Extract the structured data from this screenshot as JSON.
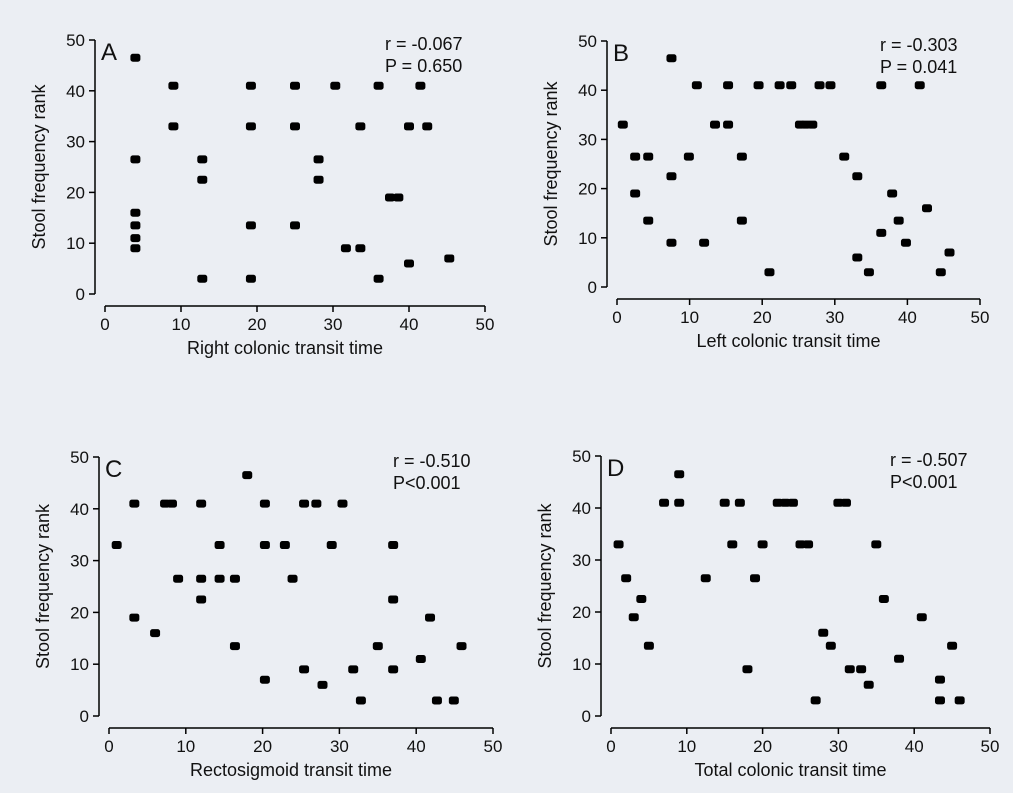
{
  "figure": {
    "background": "#ebeef3",
    "marker_color": "#000000"
  },
  "chart_data": [
    {
      "type": "scatter",
      "panel_label": "A",
      "xlabel": "Right colonic transit time",
      "ylabel": "Stool frequency rank",
      "xlim": [
        0,
        50
      ],
      "ylim": [
        0,
        50
      ],
      "xticks": [
        0,
        10,
        20,
        30,
        40,
        50
      ],
      "yticks": [
        0,
        10,
        20,
        30,
        40,
        50
      ],
      "stat_r": "r = -0.067",
      "stat_p": "P = 0.650",
      "points": [
        [
          4,
          46.5
        ],
        [
          4,
          26.5
        ],
        [
          4,
          16
        ],
        [
          4,
          13.5
        ],
        [
          4,
          11
        ],
        [
          4,
          9
        ],
        [
          9,
          41
        ],
        [
          9,
          33
        ],
        [
          12.8,
          26.5
        ],
        [
          12.8,
          22.5
        ],
        [
          12.8,
          3
        ],
        [
          19.2,
          41
        ],
        [
          19.2,
          33
        ],
        [
          19.2,
          13.5
        ],
        [
          19.2,
          3
        ],
        [
          25,
          41
        ],
        [
          25,
          33
        ],
        [
          25,
          13.5
        ],
        [
          30.3,
          41
        ],
        [
          28.1,
          26.5
        ],
        [
          28.1,
          22.5
        ],
        [
          31.7,
          9
        ],
        [
          33.6,
          33
        ],
        [
          33.6,
          9
        ],
        [
          36,
          41
        ],
        [
          36,
          3
        ],
        [
          37.5,
          19
        ],
        [
          38.6,
          19
        ],
        [
          40,
          33
        ],
        [
          40,
          6
        ],
        [
          41.5,
          41
        ],
        [
          42.4,
          33
        ],
        [
          45.3,
          7
        ]
      ]
    },
    {
      "type": "scatter",
      "panel_label": "B",
      "xlabel": "Left colonic transit time",
      "ylabel": "Stool frequency rank",
      "xlim": [
        0,
        50
      ],
      "ylim": [
        0,
        50
      ],
      "xticks": [
        0,
        10,
        20,
        30,
        40,
        50
      ],
      "yticks": [
        0,
        10,
        20,
        30,
        40,
        50
      ],
      "stat_r": "r = -0.303",
      "stat_p": "P = 0.041",
      "points": [
        [
          0.8,
          33
        ],
        [
          2.5,
          26.5
        ],
        [
          2.5,
          19
        ],
        [
          4.3,
          26.5
        ],
        [
          4.3,
          13.5
        ],
        [
          7.5,
          46.5
        ],
        [
          7.5,
          22.5
        ],
        [
          7.5,
          9
        ],
        [
          9.9,
          26.5
        ],
        [
          11,
          41
        ],
        [
          12,
          9
        ],
        [
          13.5,
          33
        ],
        [
          15.3,
          41
        ],
        [
          15.3,
          33
        ],
        [
          17.2,
          26.5
        ],
        [
          17.2,
          13.5
        ],
        [
          19.5,
          41
        ],
        [
          21,
          3
        ],
        [
          22.4,
          41
        ],
        [
          24,
          41
        ],
        [
          25.2,
          33
        ],
        [
          26,
          33
        ],
        [
          26.9,
          33
        ],
        [
          27.9,
          41
        ],
        [
          29.4,
          41
        ],
        [
          31.3,
          26.5
        ],
        [
          33.1,
          22.5
        ],
        [
          33.1,
          6
        ],
        [
          34.7,
          3
        ],
        [
          36.4,
          41
        ],
        [
          36.4,
          11
        ],
        [
          37.9,
          19
        ],
        [
          38.8,
          13.5
        ],
        [
          39.8,
          9
        ],
        [
          41.7,
          41
        ],
        [
          42.7,
          16
        ],
        [
          44.6,
          3
        ],
        [
          45.8,
          7
        ]
      ]
    },
    {
      "type": "scatter",
      "panel_label": "C",
      "xlabel": "Rectosigmoid transit time",
      "ylabel": "Stool frequency rank",
      "xlim": [
        0,
        50
      ],
      "ylim": [
        0,
        50
      ],
      "xticks": [
        0,
        10,
        20,
        30,
        40,
        50
      ],
      "yticks": [
        0,
        10,
        20,
        30,
        40,
        50
      ],
      "stat_r": "r = -0.510",
      "stat_p": "P<0.001",
      "points": [
        [
          1,
          33
        ],
        [
          3.3,
          41
        ],
        [
          3.3,
          19
        ],
        [
          6,
          16
        ],
        [
          7.3,
          41
        ],
        [
          8.2,
          41
        ],
        [
          9,
          26.5
        ],
        [
          12,
          41
        ],
        [
          12,
          26.5
        ],
        [
          12,
          22.5
        ],
        [
          14.4,
          33
        ],
        [
          14.4,
          26.5
        ],
        [
          16.4,
          26.5
        ],
        [
          16.4,
          13.5
        ],
        [
          18,
          46.5
        ],
        [
          20.3,
          41
        ],
        [
          20.3,
          33
        ],
        [
          20.3,
          7
        ],
        [
          22.9,
          33
        ],
        [
          23.9,
          26.5
        ],
        [
          25.4,
          41
        ],
        [
          25.4,
          9
        ],
        [
          27,
          41
        ],
        [
          27.8,
          6
        ],
        [
          29,
          33
        ],
        [
          30.4,
          41
        ],
        [
          31.8,
          9
        ],
        [
          32.8,
          3
        ],
        [
          35,
          13.5
        ],
        [
          37,
          33
        ],
        [
          37,
          22.5
        ],
        [
          37,
          9
        ],
        [
          40.6,
          11
        ],
        [
          41.8,
          19
        ],
        [
          42.7,
          3
        ],
        [
          44.9,
          3
        ],
        [
          45.9,
          13.5
        ]
      ]
    },
    {
      "type": "scatter",
      "panel_label": "D",
      "xlabel": "Total colonic transit time",
      "ylabel": "Stool frequency rank",
      "xlim": [
        0,
        50
      ],
      "ylim": [
        0,
        50
      ],
      "xticks": [
        0,
        10,
        20,
        30,
        40,
        50
      ],
      "yticks": [
        0,
        10,
        20,
        30,
        40,
        50
      ],
      "stat_r": "r = -0.507",
      "stat_p": "P<0.001",
      "points": [
        [
          1,
          33
        ],
        [
          2,
          26.5
        ],
        [
          3,
          19
        ],
        [
          4,
          22.5
        ],
        [
          5,
          13.5
        ],
        [
          7,
          41
        ],
        [
          9,
          46.5
        ],
        [
          9,
          41
        ],
        [
          12.5,
          26.5
        ],
        [
          15,
          41
        ],
        [
          16,
          33
        ],
        [
          17,
          41
        ],
        [
          18,
          9
        ],
        [
          19,
          26.5
        ],
        [
          20,
          33
        ],
        [
          22,
          41
        ],
        [
          23,
          41
        ],
        [
          24,
          41
        ],
        [
          25,
          33
        ],
        [
          26,
          33
        ],
        [
          27,
          3
        ],
        [
          28,
          16
        ],
        [
          29,
          13.5
        ],
        [
          30,
          41
        ],
        [
          31,
          41
        ],
        [
          31.5,
          9
        ],
        [
          33,
          9
        ],
        [
          34,
          6
        ],
        [
          35,
          33
        ],
        [
          36,
          22.5
        ],
        [
          38,
          11
        ],
        [
          41,
          19
        ],
        [
          43.4,
          7
        ],
        [
          43.4,
          3
        ],
        [
          45,
          13.5
        ],
        [
          46,
          3
        ]
      ]
    }
  ]
}
